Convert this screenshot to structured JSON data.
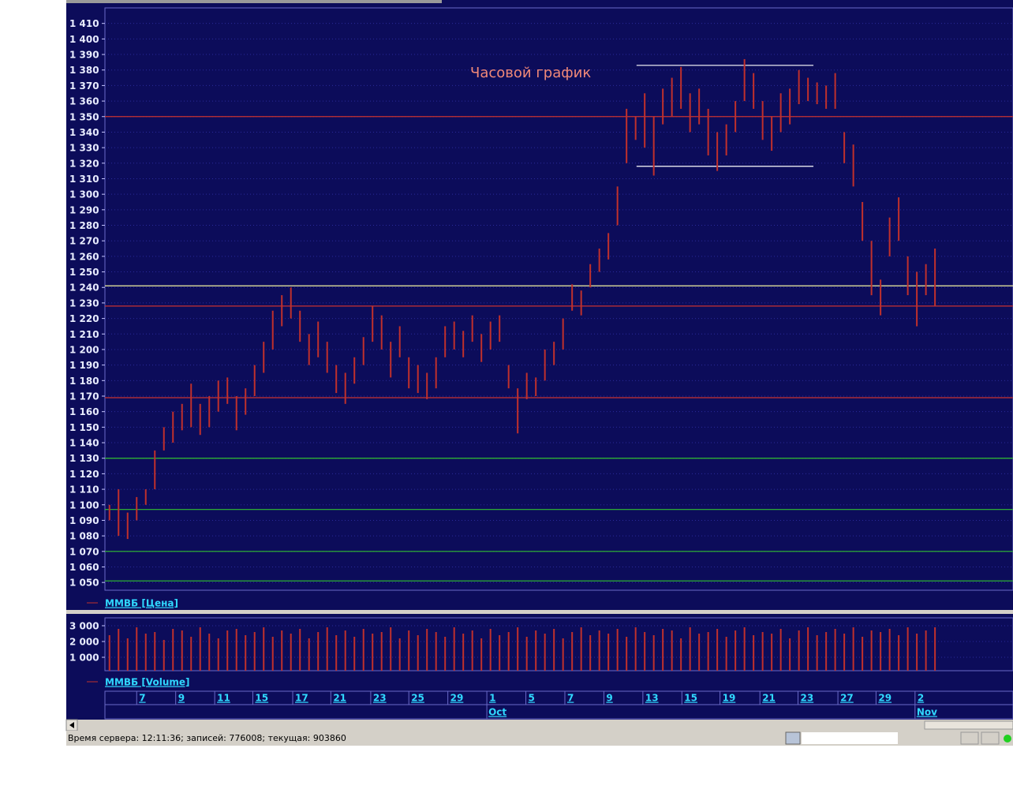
{
  "chart_data": [
    {
      "type": "range",
      "annotation": "Часовой график",
      "annotation_color": "#f08878",
      "xlim": [
        -0.5,
        99.6
      ],
      "ylim": [
        1045,
        1420
      ],
      "grid": true,
      "yticks": [
        {
          "value": 1410,
          "label": "1 410"
        },
        {
          "value": 1400,
          "label": "1 400"
        },
        {
          "value": 1390,
          "label": "1 390"
        },
        {
          "value": 1380,
          "label": "1 380"
        },
        {
          "value": 1370,
          "label": "1 370"
        },
        {
          "value": 1360,
          "label": "1 360"
        },
        {
          "value": 1350,
          "label": "1 350"
        },
        {
          "value": 1340,
          "label": "1 340"
        },
        {
          "value": 1330,
          "label": "1 330"
        },
        {
          "value": 1320,
          "label": "1 320"
        },
        {
          "value": 1310,
          "label": "1 310"
        },
        {
          "value": 1300,
          "label": "1 300"
        },
        {
          "value": 1290,
          "label": "1 290"
        },
        {
          "value": 1280,
          "label": "1 280"
        },
        {
          "value": 1270,
          "label": "1 270"
        },
        {
          "value": 1260,
          "label": "1 260"
        },
        {
          "value": 1250,
          "label": "1 250"
        },
        {
          "value": 1240,
          "label": "1 240"
        },
        {
          "value": 1230,
          "label": "1 230"
        },
        {
          "value": 1220,
          "label": "1 220"
        },
        {
          "value": 1210,
          "label": "1 210"
        },
        {
          "value": 1200,
          "label": "1 200"
        },
        {
          "value": 1190,
          "label": "1 190"
        },
        {
          "value": 1180,
          "label": "1 180"
        },
        {
          "value": 1170,
          "label": "1 170"
        },
        {
          "value": 1160,
          "label": "1 160"
        },
        {
          "value": 1150,
          "label": "1 150"
        },
        {
          "value": 1140,
          "label": "1 140"
        },
        {
          "value": 1130,
          "label": "1 130"
        },
        {
          "value": 1120,
          "label": "1 120"
        },
        {
          "value": 1110,
          "label": "1 110"
        },
        {
          "value": 1100,
          "label": "1 100"
        },
        {
          "value": 1090,
          "label": "1 090"
        },
        {
          "value": 1080,
          "label": "1 080"
        },
        {
          "value": 1070,
          "label": "1 070"
        },
        {
          "value": 1060,
          "label": "1 060"
        },
        {
          "value": 1050,
          "label": "1 050"
        }
      ],
      "hlines": [
        {
          "value": 1350,
          "color": "#c83232"
        },
        {
          "value": 1241,
          "color": "#f0f0a0"
        },
        {
          "value": 1228,
          "color": "#c83232"
        },
        {
          "value": 1169,
          "color": "#c83232"
        },
        {
          "value": 1130,
          "color": "#30c030"
        },
        {
          "value": 1097,
          "color": "#30c030"
        },
        {
          "value": 1070,
          "color": "#30c030"
        },
        {
          "value": 1051,
          "color": "#30c030"
        }
      ],
      "segments": [
        {
          "value": 1383,
          "x": [
            58.1,
            77.6
          ],
          "color": "#ffffff"
        },
        {
          "value": 1318,
          "x": [
            58.1,
            77.6
          ],
          "color": "#ffffff"
        }
      ],
      "series": [
        {
          "name": "ММВБ [Цена]",
          "color": "#c0302c",
          "high": [
            1100,
            1110,
            1095,
            1105,
            1110,
            1135,
            1150,
            1160,
            1165,
            1178,
            1165,
            1170,
            1180,
            1182,
            1170,
            1175,
            1190,
            1205,
            1225,
            1235,
            1240,
            1225,
            1210,
            1218,
            1205,
            1190,
            1185,
            1195,
            1208,
            1228,
            1222,
            1205,
            1215,
            1195,
            1190,
            1185,
            1195,
            1215,
            1218,
            1212,
            1222,
            1210,
            1218,
            1222,
            1190,
            1175,
            1185,
            1182,
            1200,
            1205,
            1220,
            1242,
            1238,
            1255,
            1265,
            1275,
            1305,
            1355,
            1350,
            1365,
            1350,
            1368,
            1375,
            1382,
            1365,
            1368,
            1355,
            1340,
            1345,
            1360,
            1387,
            1378,
            1360,
            1350,
            1365,
            1368,
            1380,
            1375,
            1372,
            1370,
            1378,
            1340,
            1332,
            1295,
            1270,
            1245,
            1285,
            1298,
            1260,
            1250,
            1255,
            1265
          ],
          "low": [
            1090,
            1080,
            1078,
            1090,
            1100,
            1110,
            1135,
            1140,
            1148,
            1150,
            1145,
            1150,
            1160,
            1165,
            1148,
            1158,
            1170,
            1185,
            1200,
            1215,
            1220,
            1205,
            1190,
            1195,
            1185,
            1172,
            1165,
            1178,
            1190,
            1205,
            1200,
            1182,
            1195,
            1175,
            1172,
            1168,
            1175,
            1195,
            1200,
            1195,
            1205,
            1192,
            1200,
            1205,
            1175,
            1146,
            1168,
            1170,
            1180,
            1190,
            1200,
            1225,
            1222,
            1240,
            1250,
            1258,
            1280,
            1320,
            1335,
            1330,
            1312,
            1345,
            1350,
            1355,
            1340,
            1345,
            1325,
            1315,
            1325,
            1340,
            1360,
            1355,
            1335,
            1328,
            1340,
            1345,
            1358,
            1360,
            1358,
            1355,
            1355,
            1320,
            1305,
            1270,
            1235,
            1222,
            1260,
            1270,
            1235,
            1215,
            1235,
            1228
          ]
        }
      ]
    },
    {
      "type": "bar",
      "xlim": [
        -0.5,
        99.6
      ],
      "ylim": [
        150,
        3500
      ],
      "grid": true,
      "yticks": [
        {
          "value": 3000,
          "label": "3 000"
        },
        {
          "value": 2000,
          "label": "2 000"
        },
        {
          "value": 1000,
          "label": "1 000"
        }
      ],
      "xticks": [
        {
          "value": 3.0,
          "label": "7"
        },
        {
          "value": 7.3,
          "label": "9"
        },
        {
          "value": 11.6,
          "label": "11"
        },
        {
          "value": 15.8,
          "label": "15"
        },
        {
          "value": 20.2,
          "label": "17"
        },
        {
          "value": 24.4,
          "label": "21"
        },
        {
          "value": 28.8,
          "label": "23"
        },
        {
          "value": 33.0,
          "label": "25"
        },
        {
          "value": 37.3,
          "label": "29"
        },
        {
          "value": 41.6,
          "label": "1"
        },
        {
          "value": 45.9,
          "label": "5"
        },
        {
          "value": 50.2,
          "label": "7"
        },
        {
          "value": 54.5,
          "label": "9"
        },
        {
          "value": 58.8,
          "label": "13"
        },
        {
          "value": 63.1,
          "label": "15"
        },
        {
          "value": 67.3,
          "label": "19"
        },
        {
          "value": 71.7,
          "label": "21"
        },
        {
          "value": 75.9,
          "label": "23"
        },
        {
          "value": 80.3,
          "label": "27"
        },
        {
          "value": 84.5,
          "label": "29"
        },
        {
          "value": 88.8,
          "label": "2"
        }
      ],
      "months": [
        {
          "value": 41.6,
          "label": "Oct"
        },
        {
          "value": 88.8,
          "label": "Nov"
        }
      ],
      "series": [
        {
          "name": "ММВБ [Volume]",
          "color": "#c0302c",
          "values": [
            2400,
            2800,
            2200,
            2900,
            2500,
            2600,
            2100,
            2800,
            2700,
            2300,
            2900,
            2500,
            2200,
            2700,
            2800,
            2400,
            2600,
            2900,
            2300,
            2700,
            2500,
            2800,
            2200,
            2600,
            2900,
            2400,
            2700,
            2300,
            2800,
            2500,
            2600,
            2900,
            2200,
            2700,
            2400,
            2800,
            2600,
            2300,
            2900,
            2500,
            2700,
            2200,
            2800,
            2400,
            2600,
            2900,
            2300,
            2700,
            2500,
            2800,
            2200,
            2600,
            2900,
            2400,
            2700,
            2500,
            2800,
            2300,
            2900,
            2600,
            2400,
            2800,
            2700,
            2200,
            2900,
            2500,
            2600,
            2800,
            2300,
            2700,
            2900,
            2400,
            2600,
            2500,
            2800,
            2200,
            2700,
            2900,
            2400,
            2600,
            2800,
            2500,
            2900,
            2300,
            2700,
            2600,
            2800,
            2400,
            2900,
            2500,
            2700,
            2900
          ]
        }
      ]
    }
  ],
  "status_bar": {
    "text": "Время сервера: 12:11:36; записей: 776008; текущая: 903860"
  }
}
